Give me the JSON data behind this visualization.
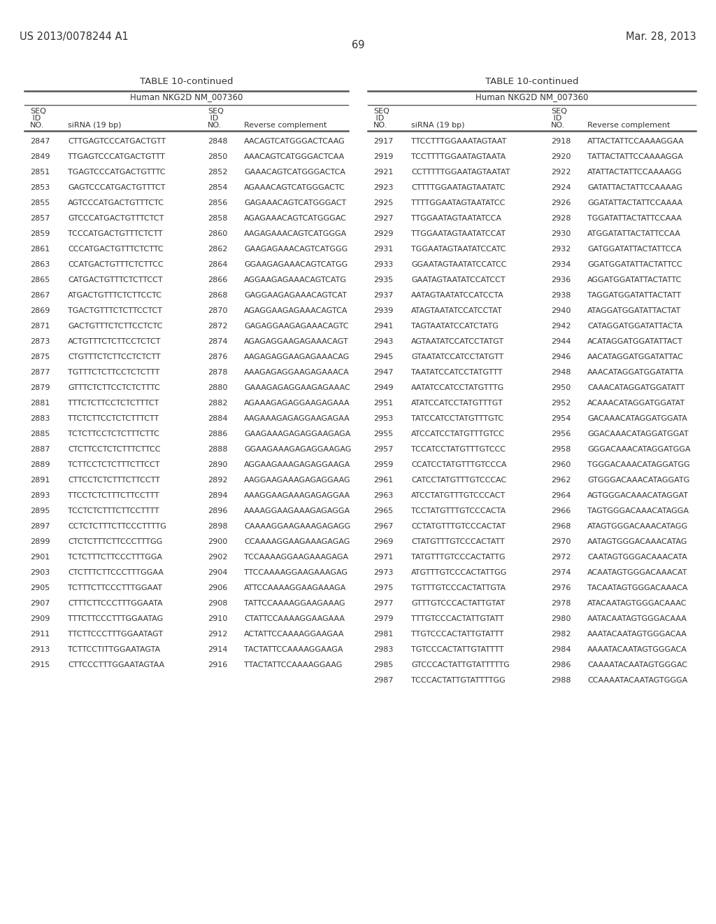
{
  "page_number": "69",
  "patent_number": "US 2013/0078244 A1",
  "patent_date": "Mar. 28, 2013",
  "table_title": "TABLE 10-continued",
  "table_subtitle": "Human NKG2D NM_007360",
  "background_color": "#ffffff",
  "text_color": "#333333",
  "line_color": "#555555",
  "font_size_body": 8.0,
  "font_size_header": 8.5,
  "font_size_title": 9.5,
  "font_size_patent": 10.5,
  "left_data": [
    [
      "2847",
      "CTTGAGTCCCATGACTGTT",
      "2848",
      "AACAGTCATGGGACTCAAG"
    ],
    [
      "2849",
      "TTGAGTCCCATGACTGTTT",
      "2850",
      "AAACAGTCATGGGACTCAA"
    ],
    [
      "2851",
      "TGAGTCCCATGACTGTTTC",
      "2852",
      "GAAACAGTCATGGGACTCA"
    ],
    [
      "2853",
      "GAGTCCCATGACTGTTTCT",
      "2854",
      "AGAAACAGTCATGGGACTC"
    ],
    [
      "2855",
      "AGTCCCATGACTGTTTCTC",
      "2856",
      "GAGAAACAGTCATGGGACT"
    ],
    [
      "2857",
      "GTCCCATGACTGTTTCTCT",
      "2858",
      "AGAGAAACAGTCATGGGAC"
    ],
    [
      "2859",
      "TCCCATGACTGTTTCTCTT",
      "2860",
      "AAGAGAAACAGTCATGGGA"
    ],
    [
      "2861",
      "CCCATGACTGTTTCTCTTC",
      "2862",
      "GAAGAGAAACAGTCATGGG"
    ],
    [
      "2863",
      "CCATGACTGTTTCTCTTCC",
      "2864",
      "GGAAGAGAAACAGTCATGG"
    ],
    [
      "2865",
      "CATGACTGTTTCTCTTCCT",
      "2866",
      "AGGAAGAGAAACAGTCATG"
    ],
    [
      "2867",
      "ATGACTGTTTCTCTTCCTC",
      "2868",
      "GAGGAAGAGAAACAGTCAT"
    ],
    [
      "2869",
      "TGACTGTTTCTCTTCCTCT",
      "2870",
      "AGAGGAAGAGAAACAGTCA"
    ],
    [
      "2871",
      "GACTGTTTCTCTTCCTCTC",
      "2872",
      "GAGAGGAAGAGAAACAGTC"
    ],
    [
      "2873",
      "ACTGTTTCTCTTCCTCTCT",
      "2874",
      "AGAGAGGAAGAGAAACAGT"
    ],
    [
      "2875",
      "CTGTTTCTCTTCCTCTCTT",
      "2876",
      "AAGAGAGGAAGAGAAACAG"
    ],
    [
      "2877",
      "TGTTTCTCTTCCTCTCTTT",
      "2878",
      "AAAGAGAGGAAGAGAAACA"
    ],
    [
      "2879",
      "GTTTCTCTTCCTCTCTTTC",
      "2880",
      "GAAAGAGAGGAAGAGAAAC"
    ],
    [
      "2881",
      "TTTCTCTTCCTCTCTTTCT",
      "2882",
      "AGAAAGAGAGGAAGAGAAA"
    ],
    [
      "2883",
      "TTCTCTTCCTCTCTTTCTT",
      "2884",
      "AAGAAAGAGAGGAAGAGAA"
    ],
    [
      "2885",
      "TCTCTTCCTCTCTTTCTTC",
      "2886",
      "GAAGAAAGAGAGGAAGAGA"
    ],
    [
      "2887",
      "CTCTTCCTCTCTTTCTTCC",
      "2888",
      "GGAAGAAAGAGAGGAAGAG"
    ],
    [
      "2889",
      "TCTTCCTCTCTTTCTTCCT",
      "2890",
      "AGGAAGAAAGAGAGGAAGA"
    ],
    [
      "2891",
      "CTTCCTCTCTTTCTTCCTT",
      "2892",
      "AAGGAAGAAAGAGAGGAAG"
    ],
    [
      "2893",
      "TTCCTCTCTTTCTTCCTTT",
      "2894",
      "AAAGGAAGAAAGAGAGGAA"
    ],
    [
      "2895",
      "TCCTCTCTTTCTTCCTTTT",
      "2896",
      "AAAAGGAAGAAAGAGAGGA"
    ],
    [
      "2897",
      "CCTCTCTTTCTTCCCTTTTG",
      "2898",
      "CAAAAGGAAGAAAGAGAGG"
    ],
    [
      "2899",
      "CTCTCTTTCTTCCCTTTGG",
      "2900",
      "CCAAAAGGAAGAAAGAGAG"
    ],
    [
      "2901",
      "TCTCTTTCTTCCCTTTGGA",
      "2902",
      "TCCAAAAGGAAGAAAGAGA"
    ],
    [
      "2903",
      "CTCTTTCTTCCCTTTGGAA",
      "2904",
      "TTCCAAAAGGAAGAAAGAG"
    ],
    [
      "2905",
      "TCTTTCTTCCCTTTGGAAT",
      "2906",
      "ATTCCAAAAGGAAGAAAGA"
    ],
    [
      "2907",
      "CTTTCTTCCCTTTGGAATA",
      "2908",
      "TATTCCAAAAGGAAGAAAG"
    ],
    [
      "2909",
      "TTTCTTCCCTTTGGAATAG",
      "2910",
      "CTATTCCAAAAGGAAGAAA"
    ],
    [
      "2911",
      "TTCTTCCCTTTGGAATAGT",
      "2912",
      "ACTATTCCAAAAGGAAGAA"
    ],
    [
      "2913",
      "TCTTCCTITTGGAATAGTA",
      "2914",
      "TACTATTCCAAAAGGAAGA"
    ],
    [
      "2915",
      "CTTCCCTTTGGAATAGTAA",
      "2916",
      "TTACTATTCCAAAAGGAAG"
    ]
  ],
  "right_data": [
    [
      "2917",
      "TTCCTTTGGAAATAGTAAT",
      "2918",
      "ATTACTATTCCAAAAGGAA"
    ],
    [
      "2919",
      "TCCTTTTGGAATAGTAATA",
      "2920",
      "TATTACTATTCCAAAAGGA"
    ],
    [
      "2921",
      "CCTTTTTGGAATAGTAATAT",
      "2922",
      "ATATTACTATTCCAAAAGG"
    ],
    [
      "2923",
      "CTTTTGGAATAGTAATATC",
      "2924",
      "GATATTACTATTCCAAAAG"
    ],
    [
      "2925",
      "TTTTGGAATAGTAATATCC",
      "2926",
      "GGATATTACTATTCCAAAA"
    ],
    [
      "2927",
      "TTGGAATAGTAATATCCA",
      "2928",
      "TGGATATTACTATTCCAAA"
    ],
    [
      "2929",
      "TTGGAATAGTAATATCCAT",
      "2930",
      "ATGGATATTACTATTCCAA"
    ],
    [
      "2931",
      "TGGAATAGTAATATCCATC",
      "2932",
      "GATGGATATTACTATTCCA"
    ],
    [
      "2933",
      "GGAATAGTAATATCCATCC",
      "2934",
      "GGATGGATATTACTATTCC"
    ],
    [
      "2935",
      "GAATAGTAATATCCATCCT",
      "2936",
      "AGGATGGATATTACTATTC"
    ],
    [
      "2937",
      "AATAGTAATATCCATCCTA",
      "2938",
      "TAGGATGGATATTACTATT"
    ],
    [
      "2939",
      "ATAGTAATATCCATCCTAT",
      "2940",
      "ATAGGATGGATATTACTAT"
    ],
    [
      "2941",
      "TAGTAATATCCATCTATG",
      "2942",
      "CATAGGATGGATATTACTA"
    ],
    [
      "2943",
      "AGTAATATCCATCCTATGT",
      "2944",
      "ACATAGGATGGATATTACT"
    ],
    [
      "2945",
      "GTAATATCCATCCTATGTT",
      "2946",
      "AACATAGGATGGATATTAC"
    ],
    [
      "2947",
      "TAATATCCATCCTATGTTT",
      "2948",
      "AAACATAGGATGGATATTA"
    ],
    [
      "2949",
      "AATATCCATCCTATGTTTG",
      "2950",
      "CAAACATAGGATGGATATT"
    ],
    [
      "2951",
      "ATATCCATCCTATGTTTGT",
      "2952",
      "ACAAACATAGGATGGATAT"
    ],
    [
      "2953",
      "TATCCATCCTATGTTTGTC",
      "2954",
      "GACAAACATAGGATGGATA"
    ],
    [
      "2955",
      "ATCCATCCTATGTTTGTCC",
      "2956",
      "GGACAAACATAGGATGGAT"
    ],
    [
      "2957",
      "TCCATCCTATGTTTGTCCC",
      "2958",
      "GGGACAAACATAGGATGGA"
    ],
    [
      "2959",
      "CCATCCTATGTTTGTCCCA",
      "2960",
      "TGGGACAAACATAGGATGG"
    ],
    [
      "2961",
      "CATCCTATGTTTGTCCCAC",
      "2962",
      "GTGGGACAAACATAGGATG"
    ],
    [
      "2963",
      "ATCCTATGTTTGTCCCACT",
      "2964",
      "AGTGGGACAAACATAGGAT"
    ],
    [
      "2965",
      "TCCTATGTTTGTCCCACTA",
      "2966",
      "TAGTGGGACAAACATAGGA"
    ],
    [
      "2967",
      "CCTATGTTTGTCCCACTAT",
      "2968",
      "ATAGTGGGACAAACATAGG"
    ],
    [
      "2969",
      "CTATGTTTGTCCCACTATT",
      "2970",
      "AATAGTGGGACAAACATAG"
    ],
    [
      "2971",
      "TATGTTTGTCCCACTATTG",
      "2972",
      "CAATAGTGGGACAAACATA"
    ],
    [
      "2973",
      "ATGTTTGTCCCACTATTGG",
      "2974",
      "ACAATAGTGGGACAAACAT"
    ],
    [
      "2975",
      "TGTTTGTCCCACTATTGTA",
      "2976",
      "TACAATAGTGGGACAAACA"
    ],
    [
      "2977",
      "GTTTGTCCCACTATTGTAT",
      "2978",
      "ATACAATAGTGGGACAAAC"
    ],
    [
      "2979",
      "TTTGTCCCACTATTGTATT",
      "2980",
      "AATACAATAGTGGGACAAA"
    ],
    [
      "2981",
      "TTGTCCCACTATTGTATTT",
      "2982",
      "AAATACAATAGTGGGACAA"
    ],
    [
      "2983",
      "TGTCCCACTATTGTATTTT",
      "2984",
      "AAAATACAATAGTGGGACA"
    ],
    [
      "2985",
      "GTCCCACTATTGTATTTTTG",
      "2986",
      "CAAAATACAATAGTGGGAC"
    ],
    [
      "2987",
      "TCCCACTATTGTATTTTGG",
      "2988",
      "CCAAAATACAATAGTGGGA"
    ]
  ]
}
